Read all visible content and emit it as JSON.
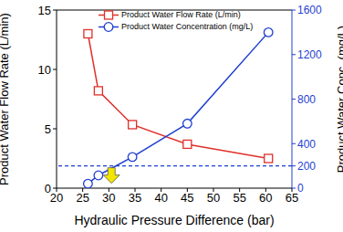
{
  "chart_data": {
    "type": "line",
    "x_label": "Hydraulic Pressure Difference (bar)",
    "y_label": "Product Water Flow Rate (L/min)",
    "y2_label": "Product Water Conc. (mg/L)",
    "x": [
      26,
      28,
      34.5,
      45,
      60.5
    ],
    "series": [
      {
        "name": "Product Water Flow Rate (L/min)",
        "color": "#e0302a",
        "marker": "square",
        "values": [
          13,
          8.2,
          5.35,
          3.7,
          2.5
        ]
      },
      {
        "name": "Product Water Concentration (mg/L)",
        "color": "#1f3fd0",
        "marker": "circle",
        "axis": "y2",
        "values": [
          40,
          115,
          280,
          580,
          1400
        ]
      }
    ],
    "xlim": [
      20,
      65
    ],
    "xticks": [
      20,
      25,
      30,
      35,
      40,
      45,
      50,
      55,
      60,
      65
    ],
    "ylim": [
      0,
      15
    ],
    "yticks": [
      0,
      5,
      10,
      15
    ],
    "y2lim": [
      0,
      1600
    ],
    "y2ticks": [
      0,
      200,
      400,
      800,
      1200,
      1600
    ],
    "legend": "upper-left",
    "annotations": [
      {
        "type": "threshold",
        "axis": "y2",
        "y": 200,
        "line_style": "dashed",
        "color": "#1f3fd0"
      },
      {
        "type": "arrow",
        "axis": "y2",
        "x": 30.5,
        "y": 200,
        "color": "#f2e600"
      }
    ]
  }
}
